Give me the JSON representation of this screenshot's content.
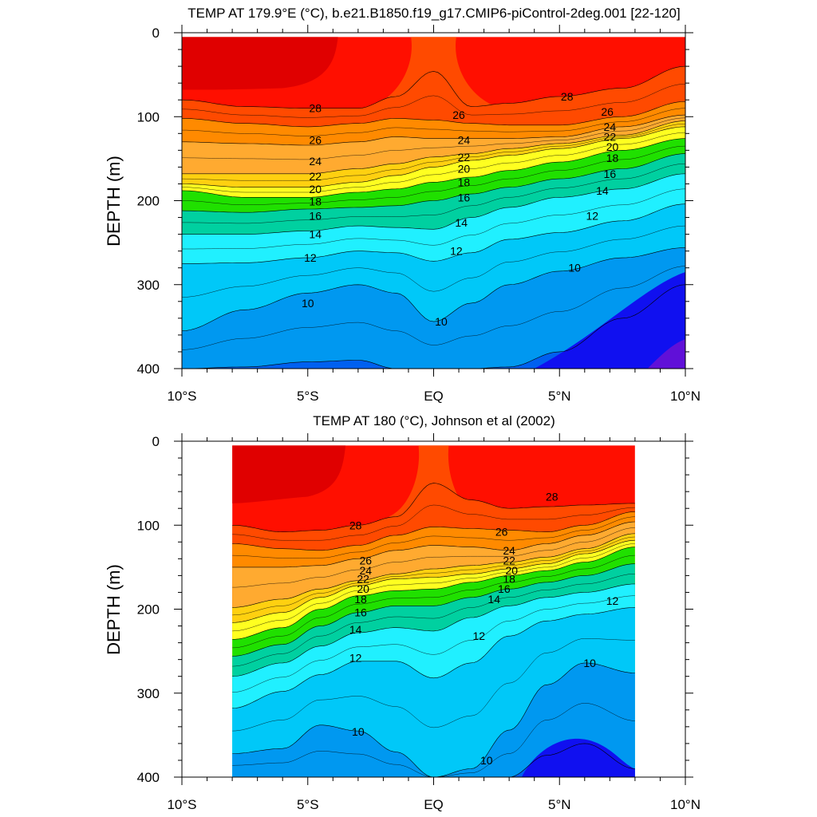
{
  "chart_data": [
    {
      "type": "contour",
      "title": "TEMP AT 179.9°E (°C), b.e21.B1850.f19_g17.CMIP6-piControl-2deg.001 [22-120]",
      "ylabel": "DEPTH (m)",
      "xlim": [
        -10,
        10
      ],
      "ylim": [
        0,
        400
      ],
      "y_inverted": true,
      "x_ticks": [
        {
          "v": -10,
          "label": "10°S"
        },
        {
          "v": -5,
          "label": "5°S"
        },
        {
          "v": 0,
          "label": "EQ"
        },
        {
          "v": 5,
          "label": "5°N"
        },
        {
          "v": 10,
          "label": "10°N"
        }
      ],
      "y_ticks": [
        {
          "v": 0,
          "label": "0"
        },
        {
          "v": 100,
          "label": "100"
        },
        {
          "v": 200,
          "label": "200"
        },
        {
          "v": 300,
          "label": "300"
        },
        {
          "v": 400,
          "label": "400"
        }
      ],
      "data_x_range": [
        -10,
        10
      ],
      "data_depth_range": [
        5,
        400
      ],
      "isotherm_depths": {
        "x": [
          -10,
          -7.5,
          -5,
          -3,
          -1.5,
          0,
          1.5,
          3,
          5,
          7.5,
          10
        ],
        "levels": [
          {
            "t": 28,
            "depth": [
              80,
              88,
              90,
              90,
              76,
              46,
              88,
              84,
              76,
              66,
              40
            ]
          },
          {
            "t": 26,
            "depth": [
              102,
              108,
              112,
              108,
              102,
              104,
              108,
              110,
              110,
              100,
              82
            ]
          },
          {
            "t": 24,
            "depth": [
              130,
              132,
              134,
              130,
              124,
              126,
              126,
              126,
              124,
              112,
              98
            ]
          },
          {
            "t": 22,
            "depth": [
              168,
              168,
              168,
              162,
              156,
              148,
              144,
              138,
              132,
              122,
              105
            ]
          },
          {
            "t": 20,
            "depth": [
              180,
              184,
              184,
              178,
              170,
              160,
              152,
              146,
              138,
              126,
              112
            ]
          },
          {
            "t": 18,
            "depth": [
              188,
              196,
              196,
              190,
              186,
              178,
              172,
              164,
              154,
              140,
              126
            ]
          },
          {
            "t": 16,
            "depth": [
              212,
              214,
              210,
              208,
              206,
              200,
              192,
              184,
              174,
              162,
              144
            ]
          },
          {
            "t": 14,
            "depth": [
              240,
              240,
              236,
              230,
              232,
              234,
              220,
              208,
              196,
              186,
              168
            ]
          },
          {
            "t": 12,
            "depth": [
              275,
              274,
              268,
              260,
              262,
              272,
              262,
              246,
              238,
              224,
              204
            ]
          },
          {
            "t": 10,
            "depth": [
              355,
              330,
              310,
              300,
              310,
              344,
              322,
              300,
              284,
              268,
              256
            ]
          },
          {
            "t": 8,
            "depth": [
              400,
              398,
              392,
              390,
              400,
              400,
              400,
              398,
              380,
              340,
              300
            ]
          }
        ]
      },
      "contour_labels": [
        {
          "text": "28",
          "x": -4.7,
          "y": 90
        },
        {
          "text": "28",
          "x": 5.3,
          "y": 76
        },
        {
          "text": "26",
          "x": -4.7,
          "y": 128
        },
        {
          "text": "26",
          "x": 1.0,
          "y": 98
        },
        {
          "text": "26",
          "x": 6.9,
          "y": 94
        },
        {
          "text": "24",
          "x": -4.7,
          "y": 153
        },
        {
          "text": "24",
          "x": 1.2,
          "y": 128
        },
        {
          "text": "24",
          "x": 7.0,
          "y": 112
        },
        {
          "text": "22",
          "x": -4.7,
          "y": 171
        },
        {
          "text": "22",
          "x": 1.2,
          "y": 148
        },
        {
          "text": "22",
          "x": 7.0,
          "y": 124
        },
        {
          "text": "20",
          "x": -4.7,
          "y": 186
        },
        {
          "text": "20",
          "x": 1.2,
          "y": 162
        },
        {
          "text": "20",
          "x": 7.1,
          "y": 136
        },
        {
          "text": "18",
          "x": -4.7,
          "y": 201
        },
        {
          "text": "18",
          "x": 1.2,
          "y": 178
        },
        {
          "text": "18",
          "x": 7.1,
          "y": 149
        },
        {
          "text": "16",
          "x": -4.7,
          "y": 218
        },
        {
          "text": "16",
          "x": 1.2,
          "y": 196
        },
        {
          "text": "16",
          "x": 7.0,
          "y": 168
        },
        {
          "text": "14",
          "x": -4.7,
          "y": 240
        },
        {
          "text": "14",
          "x": 1.1,
          "y": 226
        },
        {
          "text": "14",
          "x": 6.7,
          "y": 188
        },
        {
          "text": "12",
          "x": -4.9,
          "y": 268
        },
        {
          "text": "12",
          "x": 0.9,
          "y": 260
        },
        {
          "text": "12",
          "x": 6.3,
          "y": 218
        },
        {
          "text": "10",
          "x": -5.0,
          "y": 322
        },
        {
          "text": "10",
          "x": 0.3,
          "y": 344
        },
        {
          "text": "10",
          "x": 5.6,
          "y": 280
        }
      ],
      "colors": {
        "30": "#e00000",
        "28": "#ff0f00",
        "27": "#ff4a00",
        "26": "#ff8a00",
        "24": "#ffaa30",
        "22": "#ffd010",
        "20": "#ffff20",
        "18": "#20e000",
        "16": "#00d0a0",
        "14": "#20f0ff",
        "12": "#00c8f8",
        "10": "#0098f0",
        "8": "#0060f0",
        "6": "#1010f0",
        "4": "#6010d8"
      }
    },
    {
      "type": "contour",
      "title": "TEMP AT 180 (°C), Johnson et al (2002)",
      "ylabel": "DEPTH (m)",
      "xlim": [
        -10,
        10
      ],
      "ylim": [
        0,
        400
      ],
      "y_inverted": true,
      "x_ticks": [
        {
          "v": -10,
          "label": "10°S"
        },
        {
          "v": -5,
          "label": "5°S"
        },
        {
          "v": 0,
          "label": "EQ"
        },
        {
          "v": 5,
          "label": "5°N"
        },
        {
          "v": 10,
          "label": "10°N"
        }
      ],
      "y_ticks": [
        {
          "v": 0,
          "label": "0"
        },
        {
          "v": 100,
          "label": "100"
        },
        {
          "v": 200,
          "label": "200"
        },
        {
          "v": 300,
          "label": "300"
        },
        {
          "v": 400,
          "label": "400"
        }
      ],
      "data_x_range": [
        -8,
        8
      ],
      "data_depth_range": [
        5,
        400
      ],
      "isotherm_depths": {
        "x": [
          -8,
          -6,
          -4.5,
          -3,
          -1.5,
          0,
          1.5,
          3,
          4.5,
          6,
          8
        ],
        "levels": [
          {
            "t": 28,
            "depth": [
              100,
              108,
              106,
              100,
              90,
              50,
              70,
              80,
              78,
              76,
              74
            ]
          },
          {
            "t": 26,
            "depth": [
              122,
              128,
              130,
              124,
              112,
              102,
              104,
              106,
              108,
              100,
              84
            ]
          },
          {
            "t": 24,
            "depth": [
              150,
              150,
              148,
              140,
              130,
              124,
              126,
              130,
              122,
              112,
              96
            ]
          },
          {
            "t": 22,
            "depth": [
              198,
              188,
              176,
              166,
              158,
              152,
              148,
              144,
              138,
              128,
              110
            ]
          },
          {
            "t": 20,
            "depth": [
              216,
              204,
              186,
              172,
              164,
              162,
              158,
              152,
              146,
              134,
              118
            ]
          },
          {
            "t": 18,
            "depth": [
              236,
              222,
              200,
              184,
              178,
              176,
              168,
              160,
              154,
              144,
              126
            ]
          },
          {
            "t": 16,
            "depth": [
              256,
              242,
              220,
              204,
              196,
              196,
              186,
              176,
              168,
              160,
              146
            ]
          },
          {
            "t": 14,
            "depth": [
              280,
              264,
              244,
              228,
              222,
              226,
              210,
              196,
              186,
              180,
              170
            ]
          },
          {
            "t": 12,
            "depth": [
              318,
              298,
              278,
              262,
              262,
              282,
              264,
              232,
              214,
              206,
              198
            ]
          },
          {
            "t": 10,
            "depth": [
              372,
              366,
              338,
              345,
              370,
              400,
              390,
              344,
              290,
              264,
              276
            ]
          },
          {
            "t": 8,
            "depth": [
              400,
              400,
              400,
              400,
              400,
              400,
              400,
              400,
              374,
              360,
              390
            ]
          }
        ]
      },
      "contour_labels": [
        {
          "text": "28",
          "x": -3.1,
          "y": 100
        },
        {
          "text": "28",
          "x": 4.7,
          "y": 66
        },
        {
          "text": "26",
          "x": -2.7,
          "y": 142
        },
        {
          "text": "26",
          "x": 2.7,
          "y": 108
        },
        {
          "text": "24",
          "x": -2.7,
          "y": 154
        },
        {
          "text": "24",
          "x": 3.0,
          "y": 130
        },
        {
          "text": "22",
          "x": -2.8,
          "y": 164
        },
        {
          "text": "22",
          "x": 3.0,
          "y": 142
        },
        {
          "text": "20",
          "x": -2.8,
          "y": 176
        },
        {
          "text": "20",
          "x": 3.1,
          "y": 154
        },
        {
          "text": "18",
          "x": -2.9,
          "y": 188
        },
        {
          "text": "18",
          "x": 3.0,
          "y": 164
        },
        {
          "text": "16",
          "x": -2.9,
          "y": 204
        },
        {
          "text": "16",
          "x": 2.8,
          "y": 176
        },
        {
          "text": "14",
          "x": -3.1,
          "y": 224
        },
        {
          "text": "14",
          "x": 2.4,
          "y": 188
        },
        {
          "text": "12",
          "x": -3.1,
          "y": 258
        },
        {
          "text": "12",
          "x": 1.8,
          "y": 232
        },
        {
          "text": "12",
          "x": 7.1,
          "y": 190
        },
        {
          "text": "10",
          "x": -3.0,
          "y": 346
        },
        {
          "text": "10",
          "x": 2.1,
          "y": 380
        },
        {
          "text": "10",
          "x": 6.2,
          "y": 264
        }
      ],
      "colors": {
        "30": "#e00000",
        "28": "#ff0f00",
        "27": "#ff4a00",
        "26": "#ff8a00",
        "24": "#ffaa30",
        "22": "#ffd010",
        "20": "#ffff20",
        "18": "#20e000",
        "16": "#00d0a0",
        "14": "#20f0ff",
        "12": "#00c8f8",
        "10": "#0098f0",
        "8": "#0060f0",
        "6": "#1010f0",
        "4": "#6010d8"
      }
    }
  ]
}
